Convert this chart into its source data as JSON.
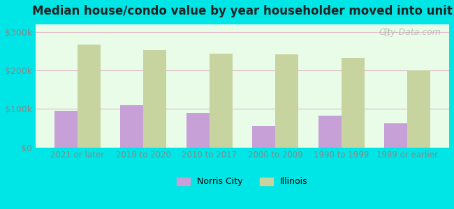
{
  "title": "Median house/condo value by year householder moved into unit",
  "categories": [
    "2021 or later",
    "2018 to 2020",
    "2010 to 2017",
    "2000 to 2009",
    "1990 to 1999",
    "1989 or earlier"
  ],
  "norris_city": [
    95000,
    110000,
    90000,
    55000,
    82000,
    62000
  ],
  "illinois": [
    268000,
    252000,
    243000,
    242000,
    232000,
    200000
  ],
  "norris_city_color": "#c8a0d8",
  "illinois_color": "#c8d4a0",
  "background_color": "#e8fce8",
  "outer_background": "#00e5e5",
  "ylim": [
    0,
    320000
  ],
  "yticks": [
    0,
    100000,
    200000,
    300000
  ],
  "ytick_labels": [
    "$0",
    "$100k",
    "$200k",
    "$300k"
  ],
  "bar_width": 0.35,
  "watermark_text": "City-Data.com",
  "legend_norris": "Norris City",
  "legend_illinois": "Illinois"
}
